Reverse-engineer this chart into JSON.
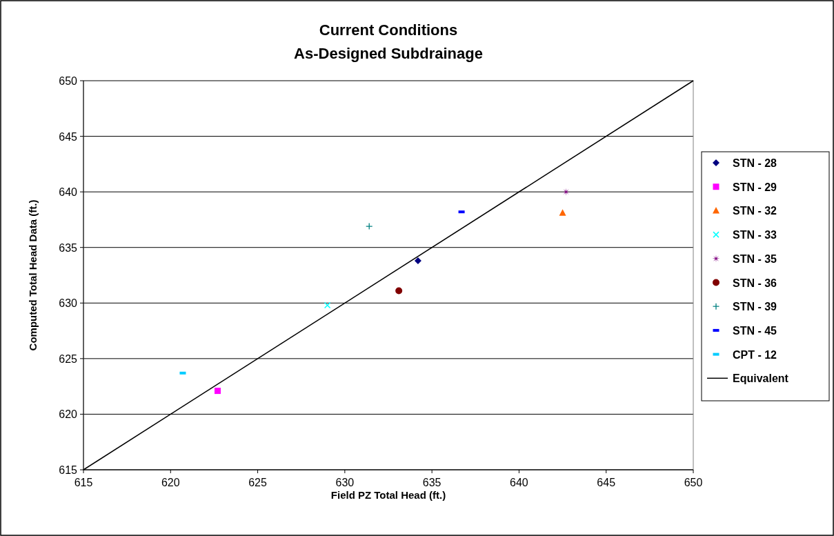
{
  "chart_data": {
    "type": "scatter",
    "title": "Current Conditions\nAs-Designed Subdrainage",
    "xlabel": "Field PZ Total Head (ft.)",
    "ylabel": "Computed Total Head Data (ft.)",
    "xlim": [
      615,
      650
    ],
    "xticks": [
      615,
      620,
      625,
      630,
      635,
      640,
      645,
      650
    ],
    "ylim": [
      615,
      650
    ],
    "yticks": [
      615,
      620,
      625,
      630,
      635,
      640,
      645,
      650
    ],
    "grid": "y",
    "legend": "right",
    "series": [
      {
        "name": "STN - 28",
        "color": "#000080",
        "marker": "diamond",
        "x": [
          634.2
        ],
        "values": [
          633.8
        ]
      },
      {
        "name": "STN - 29",
        "color": "#ff00ff",
        "marker": "square",
        "x": [
          622.7
        ],
        "values": [
          622.1
        ]
      },
      {
        "name": "STN - 32",
        "color": "#ff6600",
        "marker": "triangle",
        "x": [
          642.5
        ],
        "values": [
          638.1
        ]
      },
      {
        "name": "STN - 33",
        "color": "#00ffff",
        "marker": "cross",
        "x": [
          629.0
        ],
        "values": [
          629.8
        ]
      },
      {
        "name": "STN - 35",
        "color": "#800080",
        "marker": "star",
        "x": [
          642.7
        ],
        "values": [
          640.0
        ]
      },
      {
        "name": "STN - 36",
        "color": "#800000",
        "marker": "circle",
        "x": [
          633.1
        ],
        "values": [
          631.1
        ]
      },
      {
        "name": "STN - 39",
        "color": "#008080",
        "marker": "plus",
        "x": [
          631.4
        ],
        "values": [
          636.9
        ]
      },
      {
        "name": "STN - 45",
        "color": "#0000ff",
        "x": [
          636.7
        ],
        "values": [
          638.2
        ]
      },
      {
        "name": "CPT - 12",
        "color": "#00ccff",
        "x": [
          620.7
        ],
        "values": [
          623.7
        ]
      },
      {
        "name": "Equivalent",
        "type": "line",
        "color": "#000000",
        "marker": "none",
        "line_style": "solid",
        "x": [
          615,
          650
        ],
        "values": [
          615,
          650
        ]
      }
    ]
  }
}
